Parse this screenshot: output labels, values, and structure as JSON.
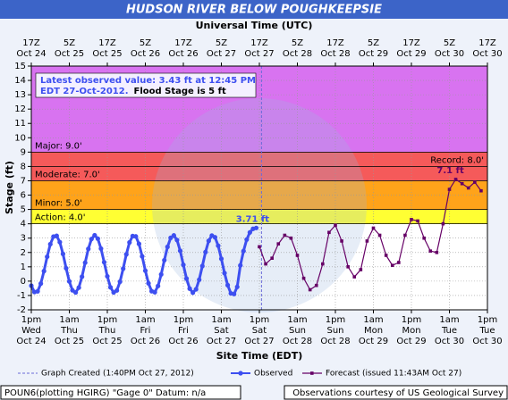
{
  "chart_data": {
    "type": "hydrograph",
    "title": "HUDSON RIVER BELOW POUGHKEEPSIE",
    "top_axis_label": "Universal Time (UTC)",
    "x_axis_label": "Site Time (EDT)",
    "y_axis_label": "Stage (ft)",
    "xlim": [
      0,
      144
    ],
    "xticks": [
      {
        "value": 0,
        "label": "1pm"
      },
      {
        "value": 12,
        "label": "1am"
      },
      {
        "value": 24,
        "label": "1pm"
      },
      {
        "value": 36,
        "label": "1am"
      },
      {
        "value": 48,
        "label": "1pm"
      },
      {
        "value": 60,
        "label": "1am"
      },
      {
        "value": 72,
        "label": "1pm"
      },
      {
        "value": 84,
        "label": "1am"
      },
      {
        "value": 96,
        "label": "1pm"
      },
      {
        "value": 108,
        "label": "1am"
      },
      {
        "value": 120,
        "label": "1pm"
      },
      {
        "value": 132,
        "label": "1am"
      },
      {
        "value": 144,
        "label": "1pm"
      }
    ],
    "xtick_days": [
      "Wed",
      "Thu",
      "Thu",
      "Fri",
      "Fri",
      "Sat",
      "Sat",
      "Sun",
      "Sun",
      "Mon",
      "Mon",
      "Tue",
      "Tue"
    ],
    "xtick_dates": [
      "Oct 24",
      "Oct 25",
      "Oct 25",
      "Oct 26",
      "Oct 26",
      "Oct 27",
      "Oct 27",
      "Oct 28",
      "Oct 28",
      "Oct 29",
      "Oct 29",
      "Oct 30",
      "Oct 30"
    ],
    "x2ticks": [
      {
        "value": 0,
        "label": "17Z"
      },
      {
        "value": 12,
        "label": "5Z"
      },
      {
        "value": 24,
        "label": "17Z"
      },
      {
        "value": 36,
        "label": "5Z"
      },
      {
        "value": 48,
        "label": "17Z"
      },
      {
        "value": 60,
        "label": "5Z"
      },
      {
        "value": 72,
        "label": "17Z"
      },
      {
        "value": 84,
        "label": "5Z"
      },
      {
        "value": 96,
        "label": "17Z"
      },
      {
        "value": 108,
        "label": "5Z"
      },
      {
        "value": 120,
        "label": "17Z"
      },
      {
        "value": 132,
        "label": "5Z"
      },
      {
        "value": 144,
        "label": "17Z"
      }
    ],
    "x2tick_dates": [
      "Oct 24",
      "Oct 25",
      "Oct 25",
      "Oct 26",
      "Oct 26",
      "Oct 27",
      "Oct 27",
      "Oct 28",
      "Oct 28",
      "Oct 29",
      "Oct 29",
      "Oct 30",
      "Oct 30"
    ],
    "ylim": [
      -2,
      15
    ],
    "yticks": [
      -2,
      -1,
      0,
      1,
      2,
      3,
      4,
      5,
      6,
      7,
      8,
      9,
      10,
      11,
      12,
      13,
      14,
      15
    ],
    "grid": true,
    "flood_stages": [
      {
        "label": "Action: 4.0'",
        "value": 4,
        "color": "#ffff33"
      },
      {
        "label": "Minor: 5.0'",
        "value": 5,
        "color": "#ffa31a"
      },
      {
        "label": "Moderate: 7.0'",
        "value": 7,
        "color": "#f55a5a"
      },
      {
        "label": "Major: 9.0'",
        "value": 9,
        "color": "#d873f0"
      }
    ],
    "record": {
      "label": "Record: 8.0'",
      "value": 8
    },
    "created": {
      "label": "Graph Created (1:40PM Oct 27, 2012)",
      "x": 72.67
    },
    "info": {
      "line1": "Latest observed value: 3.43 ft at 12:45 PM",
      "line2": "EDT 27-Oct-2012.",
      "note": "Flood Stage is 5 ft"
    },
    "series": [
      {
        "name": "Observed",
        "color": "#3d4ff0",
        "x": [
          0,
          1,
          2,
          3,
          4,
          5,
          6,
          7,
          8,
          9,
          10,
          11,
          12,
          13,
          14,
          15,
          16,
          17,
          18,
          19,
          20,
          21,
          22,
          23,
          24,
          25,
          26,
          27,
          28,
          29,
          30,
          31,
          32,
          33,
          34,
          35,
          36,
          37,
          38,
          39,
          40,
          41,
          42,
          43,
          44,
          45,
          46,
          47,
          48,
          49,
          50,
          51,
          52,
          53,
          54,
          55,
          56,
          57,
          58,
          59,
          60,
          61,
          62,
          63,
          64,
          65,
          66,
          67,
          68,
          69,
          70,
          71
        ],
        "values": [
          -0.32,
          -0.76,
          -0.71,
          -0.17,
          0.7,
          1.7,
          2.58,
          3.11,
          3.16,
          2.72,
          1.9,
          0.9,
          -0.02,
          -0.64,
          -0.79,
          -0.45,
          0.31,
          1.29,
          2.25,
          2.94,
          3.2,
          2.96,
          2.27,
          1.32,
          0.34,
          -0.43,
          -0.79,
          -0.65,
          -0.04,
          0.87,
          1.87,
          2.7,
          3.15,
          3.12,
          2.6,
          1.73,
          0.73,
          -0.15,
          -0.7,
          -0.77,
          -0.34,
          0.47,
          1.46,
          2.39,
          3.02,
          3.19,
          2.87,
          2.12,
          1.14,
          0.18,
          -0.52,
          -0.8,
          -0.57,
          0.1,
          1.05,
          2.03,
          2.81,
          3.18,
          3.06,
          2.47,
          1.56,
          0.56,
          -0.28,
          -0.85,
          -0.9,
          -0.4,
          1.1,
          2.1,
          2.9,
          3.4,
          3.65,
          3.71
        ],
        "peak_label": "3.71 ft"
      },
      {
        "name": "Forecast (issued 11:43AM Oct 27)",
        "color": "#660066",
        "x": [
          72,
          74,
          76,
          78,
          80,
          82,
          84,
          86,
          88,
          90,
          92,
          94,
          96,
          98,
          100,
          102,
          104,
          106,
          108,
          110,
          112,
          114,
          116,
          118,
          120,
          122,
          124,
          126,
          128,
          130,
          132,
          134,
          136,
          138,
          140,
          142
        ],
        "values": [
          2.4,
          1.2,
          1.6,
          2.6,
          3.2,
          3.0,
          1.8,
          0.2,
          -0.6,
          -0.3,
          1.2,
          3.4,
          3.9,
          2.8,
          1.0,
          0.3,
          0.8,
          2.8,
          3.7,
          3.2,
          1.8,
          1.1,
          1.3,
          3.2,
          4.3,
          4.2,
          3.0,
          2.1,
          2.0,
          4.0,
          6.4,
          7.1,
          6.8,
          6.5,
          6.9,
          6.3
        ],
        "peak_label": "7.1 ft"
      }
    ],
    "footer_left": "POUN6(plotting HGIRG) \"Gage 0\" Datum: n/a",
    "footer_right": "Observations courtesy of US Geological Survey"
  }
}
